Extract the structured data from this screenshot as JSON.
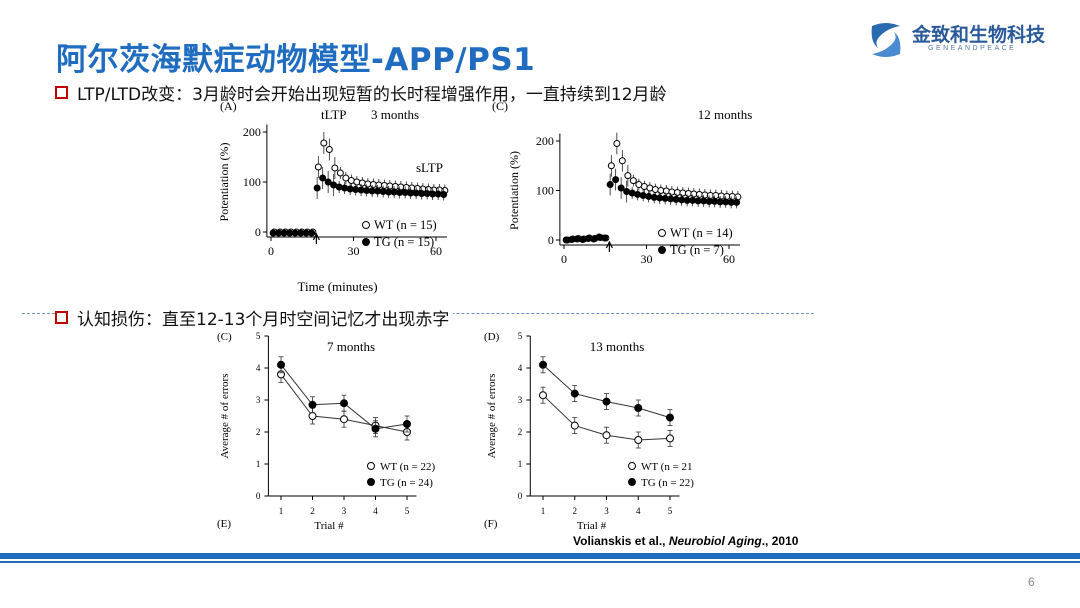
{
  "title": "阿尔茨海默症动物模型-APP/PS1",
  "logo": {
    "name": "金致和生物科技",
    "sub": "GENEANDPEACE"
  },
  "bullets": [
    "LTP/LTD改变：3月龄时会开始出现短暂的长时程增强作用，一直持续到12月龄",
    "认知损伤：直至12-13个月时空间记忆才出现赤字"
  ],
  "citation": {
    "authors": "Volianskis et al., ",
    "journal": "Neurobiol Aging",
    "year": "., 2010"
  },
  "page_number": "6",
  "colors": {
    "title": "#1f6cc0",
    "bullet_box": "#c00000",
    "bars": "#1f6cc0"
  },
  "chart_data": [
    {
      "type": "scatter",
      "panel": "(A)",
      "title": "3 months",
      "annotations": [
        "tLTP",
        "sLTP"
      ],
      "xlabel": "Time (minutes)",
      "ylabel": "Potentiation (%)",
      "xlim": [
        0,
        65
      ],
      "ylim": [
        -10,
        220
      ],
      "xticks": [
        "0",
        "30",
        "60"
      ],
      "yticks": [
        "0",
        "100",
        "200"
      ],
      "series": [
        {
          "name": "WT (n = 15)",
          "fill": "open",
          "x": [
            1,
            3,
            5,
            7,
            9,
            11,
            13,
            15,
            17,
            19,
            21,
            23,
            25,
            27,
            29,
            31,
            33,
            35,
            37,
            39,
            41,
            43,
            45,
            47,
            49,
            51,
            53,
            55,
            57,
            59,
            61,
            63
          ],
          "y": [
            0,
            0,
            0,
            0,
            0,
            0,
            0,
            0,
            130,
            178,
            165,
            128,
            118,
            108,
            103,
            100,
            98,
            96,
            95,
            94,
            93,
            92,
            91,
            90,
            89,
            88,
            87,
            86,
            85,
            84,
            84,
            83
          ]
        },
        {
          "name": "TG (n = 15)",
          "fill": "filled",
          "x": [
            1,
            3,
            5,
            7,
            9,
            11,
            13,
            15,
            17,
            19,
            21,
            23,
            25,
            27,
            29,
            31,
            33,
            35,
            37,
            39,
            41,
            43,
            45,
            47,
            49,
            51,
            53,
            55,
            57,
            59,
            61,
            63
          ],
          "y": [
            -2,
            -2,
            -2,
            -2,
            -2,
            -2,
            -2,
            -2,
            88,
            108,
            100,
            94,
            90,
            88,
            86,
            85,
            84,
            83,
            82,
            82,
            81,
            80,
            80,
            79,
            79,
            78,
            78,
            77,
            77,
            76,
            76,
            75
          ]
        }
      ]
    },
    {
      "type": "scatter",
      "panel": "(C)",
      "title": "12 months",
      "ylabel": "Potentiation (%)",
      "xlim": [
        0,
        65
      ],
      "ylim": [
        -10,
        220
      ],
      "xticks": [
        "0",
        "30",
        "60"
      ],
      "yticks": [
        "0",
        "100",
        "200"
      ],
      "series": [
        {
          "name": "WT (n = 14)",
          "fill": "open",
          "x": [
            1,
            3,
            5,
            7,
            9,
            11,
            13,
            15,
            17,
            19,
            21,
            23,
            25,
            27,
            29,
            31,
            33,
            35,
            37,
            39,
            41,
            43,
            45,
            47,
            49,
            51,
            53,
            55,
            57,
            59,
            61,
            63
          ],
          "y": [
            0,
            2,
            3,
            2,
            4,
            3,
            5,
            4,
            150,
            195,
            160,
            130,
            120,
            112,
            108,
            105,
            102,
            100,
            99,
            97,
            96,
            95,
            94,
            93,
            92,
            91,
            90,
            90,
            89,
            88,
            88,
            87
          ]
        },
        {
          "name": "TG (n = 7)",
          "fill": "filled",
          "x": [
            1,
            3,
            5,
            7,
            9,
            11,
            13,
            15,
            17,
            19,
            21,
            23,
            25,
            27,
            29,
            31,
            33,
            35,
            37,
            39,
            41,
            43,
            45,
            47,
            49,
            51,
            53,
            55,
            57,
            59,
            61,
            63
          ],
          "y": [
            0,
            1,
            2,
            1,
            3,
            2,
            6,
            4,
            112,
            122,
            105,
            98,
            95,
            92,
            90,
            88,
            86,
            85,
            84,
            83,
            82,
            81,
            80,
            80,
            79,
            79,
            78,
            78,
            77,
            77,
            76,
            76
          ]
        }
      ]
    },
    {
      "type": "line",
      "panel": "(C)",
      "label_below": "(E)",
      "title": "7 months",
      "xlabel": "Trial #",
      "ylabel": "Average # of errors",
      "x": [
        1,
        2,
        3,
        4,
        5
      ],
      "ylim": [
        0,
        5
      ],
      "yticks": [
        "0",
        "1",
        "2",
        "3",
        "4",
        "5"
      ],
      "series": [
        {
          "name": "WT (n = 22)",
          "fill": "open",
          "values": [
            3.8,
            2.5,
            2.4,
            2.2,
            2.0
          ]
        },
        {
          "name": "TG (n = 24)",
          "fill": "filled",
          "values": [
            4.1,
            2.85,
            2.9,
            2.1,
            2.25
          ]
        }
      ]
    },
    {
      "type": "line",
      "panel": "(D)",
      "label_below": "(F)",
      "title": "13 months",
      "xlabel": "Trial #",
      "ylabel": "Average # of errors",
      "x": [
        1,
        2,
        3,
        4,
        5
      ],
      "ylim": [
        0,
        5
      ],
      "yticks": [
        "0",
        "1",
        "2",
        "3",
        "4",
        "5"
      ],
      "series": [
        {
          "name": "WT (n = 21",
          "fill": "open",
          "values": [
            3.15,
            2.2,
            1.9,
            1.75,
            1.8
          ]
        },
        {
          "name": "TG (n = 22)",
          "fill": "filled",
          "values": [
            4.1,
            3.2,
            2.95,
            2.75,
            2.45
          ]
        }
      ]
    }
  ]
}
